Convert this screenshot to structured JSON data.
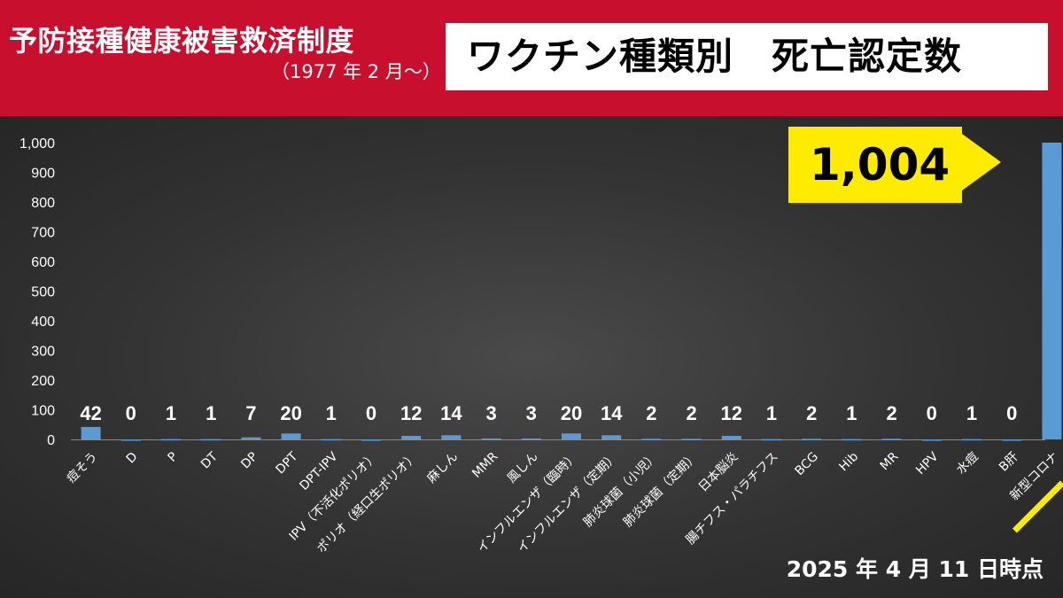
{
  "header": {
    "main_title": "予防接種健康被害救済制度",
    "sub_title": "（1977 年 2 月〜）",
    "box_title": "ワクチン種類別　死亡認定数"
  },
  "callout": {
    "text": "1,004"
  },
  "date_note": "2025 年 4 月 11 日時点",
  "colors": {
    "header": "#c8102e",
    "bar": "#5b9bd5",
    "callout": "#ffeb00",
    "text": "#ffffff"
  },
  "chart_data": {
    "type": "bar",
    "categories": [
      "痘そう",
      "D",
      "P",
      "DT",
      "DP",
      "DPT",
      "DPT-IPV",
      "IPV（不活化ポリオ）",
      "ポリオ（経口生ポリオ）",
      "麻しん",
      "MMR",
      "風しん",
      "インフルエンザ（臨時）",
      "インフルエンザ（定期）",
      "肺炎球菌（小児）",
      "肺炎球菌（定期）",
      "日本脳炎",
      "腸チフス・パラチフス",
      "BCG",
      "Hib",
      "MR",
      "HPV",
      "水痘",
      "B肝",
      "新型コロナ"
    ],
    "values": [
      42,
      0,
      1,
      1,
      7,
      20,
      1,
      0,
      12,
      14,
      3,
      3,
      20,
      14,
      2,
      2,
      12,
      1,
      2,
      1,
      2,
      0,
      1,
      0,
      1004
    ],
    "data_labels": [
      "42",
      "0",
      "1",
      "1",
      "7",
      "20",
      "1",
      "0",
      "12",
      "14",
      "3",
      "3",
      "20",
      "14",
      "2",
      "2",
      "12",
      "1",
      "2",
      "1",
      "2",
      "0",
      "1",
      "0",
      ""
    ],
    "yticks": [
      "0",
      "100",
      "200",
      "300",
      "400",
      "500",
      "600",
      "700",
      "800",
      "900",
      "1,000"
    ],
    "ylim": [
      0,
      1000
    ],
    "grid": false,
    "highlight_index": 24
  }
}
